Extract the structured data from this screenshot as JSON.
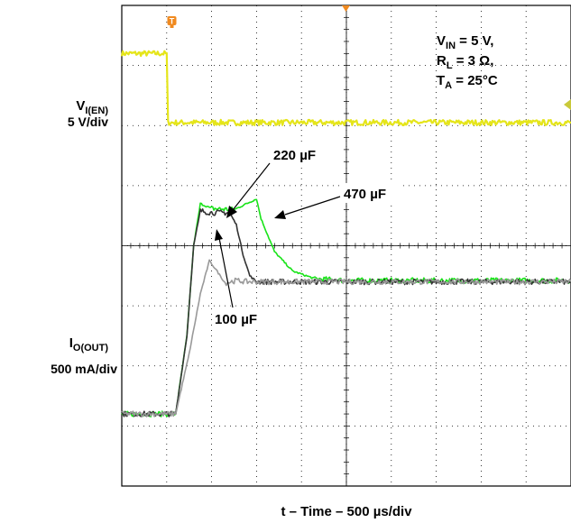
{
  "chart_data": {
    "type": "line",
    "xlabel": "t – Time – 500 µs/div",
    "ylabel_top": {
      "main": "V",
      "sub": "I(EN)",
      "scale": "5 V/div"
    },
    "ylabel_bottom": {
      "main": "I",
      "sub": "O(OUT)",
      "scale": "500 mA/div"
    },
    "conditions": [
      {
        "main": "V",
        "sub": "IN",
        "rest": " = 5 V,"
      },
      {
        "main": "R",
        "sub": "L",
        "rest": " = 3 Ω,"
      },
      {
        "main": "T",
        "sub": "A",
        "rest": " = 25°C"
      }
    ],
    "grid": {
      "x_divisions": 10,
      "y_divisions": 8,
      "dotted": true
    },
    "xlim": [
      0,
      10
    ],
    "ylim": [
      0,
      8
    ],
    "trigger_marker": "T",
    "series": [
      {
        "name": "V_I(EN)",
        "color": "#e5e51a",
        "x": [
          0,
          1.0,
          1.03,
          10
        ],
        "y": [
          7.2,
          7.2,
          6.05,
          6.05
        ]
      },
      {
        "name": "470 µF",
        "color": "#19e319",
        "x": [
          0,
          1.2,
          1.45,
          1.6,
          1.75,
          2.0,
          2.5,
          3.0,
          3.1,
          3.4,
          3.8,
          4.3,
          5.0,
          10
        ],
        "y": [
          1.2,
          1.2,
          2.5,
          4.0,
          4.7,
          4.62,
          4.6,
          4.78,
          4.45,
          3.9,
          3.58,
          3.45,
          3.42,
          3.42
        ]
      },
      {
        "name": "220 µF",
        "color": "#333333",
        "x": [
          0,
          1.2,
          1.45,
          1.6,
          1.75,
          2.0,
          2.4,
          2.55,
          2.7,
          2.85,
          3.0,
          10
        ],
        "y": [
          1.2,
          1.2,
          2.5,
          4.0,
          4.58,
          4.55,
          4.55,
          4.35,
          3.85,
          3.5,
          3.4,
          3.4
        ]
      },
      {
        "name": "100 µF",
        "color": "#999999",
        "x": [
          0,
          1.2,
          1.5,
          1.75,
          1.95,
          2.1,
          2.3,
          2.55,
          2.8,
          10
        ],
        "y": [
          1.2,
          1.2,
          2.2,
          3.2,
          3.75,
          3.6,
          3.38,
          3.42,
          3.4,
          3.4
        ]
      }
    ],
    "annotations": [
      "220 µF",
      "470 µF",
      "100 µF"
    ]
  }
}
